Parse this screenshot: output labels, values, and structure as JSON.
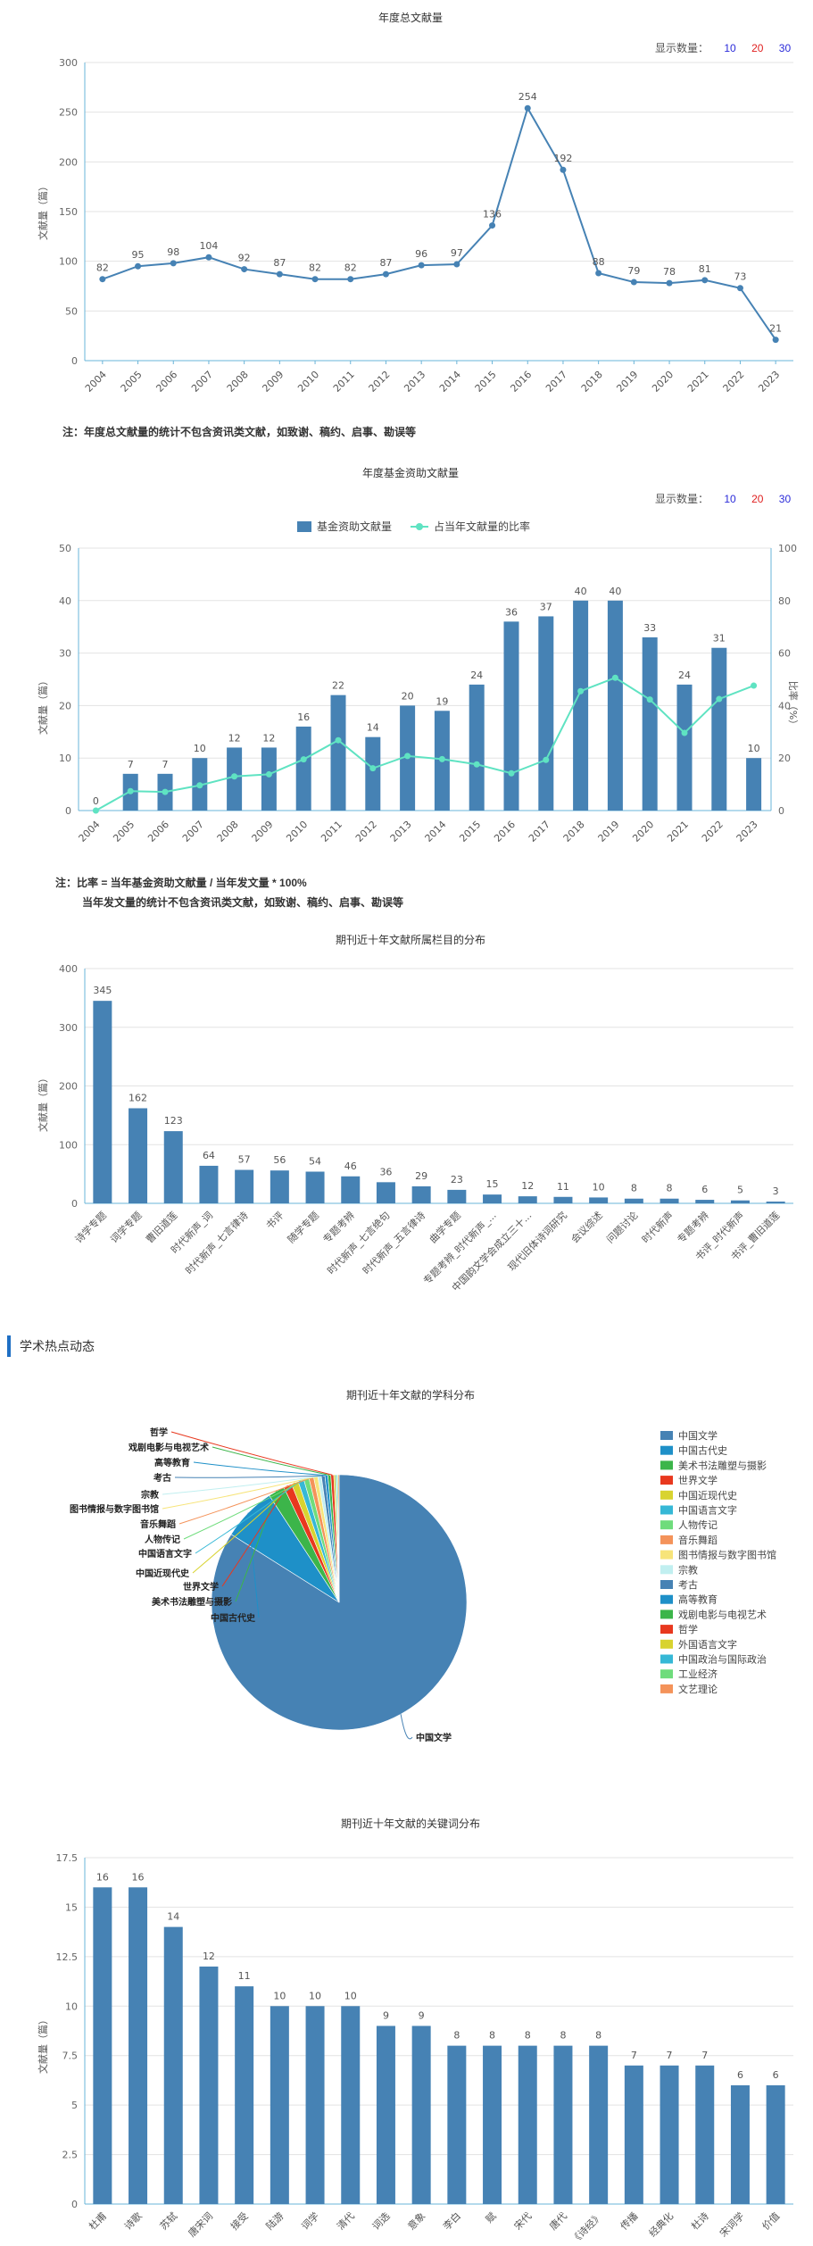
{
  "controls": {
    "label": "显示数量：",
    "opt10": "10",
    "opt20": "20",
    "opt30": "30"
  },
  "chart1": {
    "title": "年度总文献量",
    "ylabel": "文献量（篇）",
    "note": "注：年度总文献量的统计不包含资讯类文献，如致谢、稿约、启事、勘误等"
  },
  "chart2": {
    "title": "年度基金资助文献量",
    "ylabel": "文献量（篇）",
    "ylabel_right": "比率（%）",
    "legend_bar": "基金资助文献量",
    "legend_line": "占当年文献量的比率",
    "note1": "注：比率 = 当年基金资助文献量 / 当年发文量 * 100%",
    "note2": "当年发文量的统计不包含资讯类文献，如致谢、稿约、启事、勘误等"
  },
  "chart3": {
    "title": "期刊近十年文献所属栏目的分布",
    "ylabel": "文献量（篇）"
  },
  "section": {
    "title": "学术热点动态"
  },
  "chart4": {
    "title": "期刊近十年文献的学科分布"
  },
  "chart5": {
    "title": "期刊近十年文献的关键词分布",
    "ylabel": "文献量（篇）"
  },
  "chart_data": [
    {
      "type": "line",
      "title": "年度总文献量",
      "ylabel": "文献量（篇）",
      "x": [
        "2004",
        "2005",
        "2006",
        "2007",
        "2008",
        "2009",
        "2010",
        "2011",
        "2012",
        "2013",
        "2014",
        "2015",
        "2016",
        "2017",
        "2018",
        "2019",
        "2020",
        "2021",
        "2022",
        "2023"
      ],
      "values": [
        82,
        95,
        98,
        104,
        92,
        87,
        82,
        82,
        87,
        96,
        97,
        136,
        254,
        192,
        88,
        79,
        78,
        81,
        73,
        21
      ],
      "ylim": [
        0,
        300
      ],
      "yticks": [
        0,
        50,
        100,
        150,
        200,
        250,
        300
      ],
      "color": "#4682b4"
    },
    {
      "type": "bar",
      "title": "年度基金资助文献量",
      "ylabel": "文献量（篇）",
      "ylabel_right": "比率（%）",
      "x": [
        "2004",
        "2005",
        "2006",
        "2007",
        "2008",
        "2009",
        "2010",
        "2011",
        "2012",
        "2013",
        "2014",
        "2015",
        "2016",
        "2017",
        "2018",
        "2019",
        "2020",
        "2021",
        "2022",
        "2023"
      ],
      "series": [
        {
          "name": "基金资助文献量",
          "type": "bar",
          "color": "#4682b4",
          "values": [
            0,
            7,
            7,
            10,
            12,
            12,
            16,
            22,
            14,
            20,
            19,
            24,
            36,
            37,
            40,
            40,
            33,
            24,
            31,
            10
          ]
        },
        {
          "name": "占当年文献量的比率",
          "type": "line",
          "axis": "right",
          "color": "#5fe3c2",
          "values": [
            0,
            7.4,
            7.1,
            9.6,
            13.0,
            13.8,
            19.5,
            26.8,
            16.1,
            20.8,
            19.6,
            17.6,
            14.2,
            19.3,
            45.5,
            50.6,
            42.3,
            29.6,
            42.5,
            47.6
          ]
        }
      ],
      "ylim": [
        0,
        50
      ],
      "yticks": [
        0,
        10,
        20,
        30,
        40,
        50
      ],
      "ylim_right": [
        0,
        100
      ],
      "yticks_right": [
        0,
        20,
        40,
        60,
        80,
        100
      ]
    },
    {
      "type": "bar",
      "title": "期刊近十年文献所属栏目的分布",
      "ylabel": "文献量（篇）",
      "categories": [
        "诗学专题",
        "词学专题",
        "曹旧道莲",
        "时代新声_词",
        "时代新声_七言律诗",
        "书评",
        "随学专题",
        "专题考辨",
        "时代新声_七言绝句",
        "时代新声_五言律诗",
        "曲学专题",
        "专题考辨_时代新声_...",
        "中国韵文学会成立三十...",
        "现代旧体诗词研究",
        "会议综述",
        "问题讨论",
        "时代新声",
        "专题考辨",
        "书评_时代新声",
        "书评_曹旧道莲"
      ],
      "values": [
        345,
        162,
        123,
        64,
        57,
        56,
        54,
        46,
        36,
        29,
        23,
        15,
        12,
        11,
        10,
        8,
        8,
        6,
        5,
        3
      ],
      "ylim": [
        0,
        400
      ],
      "yticks": [
        0,
        100,
        200,
        300,
        400
      ],
      "color": "#4682b4"
    },
    {
      "type": "pie",
      "title": "期刊近十年文献的学科分布",
      "labels": [
        "中国文学",
        "中国古代史",
        "美术书法雕塑与摄影",
        "世界文学",
        "中国近现代史",
        "中国语言文字",
        "人物传记",
        "音乐舞蹈",
        "图书情报与数字图书馆",
        "宗教",
        "考古",
        "高等教育",
        "戏剧电影与电视艺术",
        "哲学",
        "外国语言文字",
        "中国政治与国际政治",
        "工业经济",
        "文艺理论"
      ],
      "values": [
        1130,
        92,
        28,
        14,
        12,
        10,
        9,
        8,
        7,
        6,
        6,
        5,
        5,
        5,
        3,
        2,
        2,
        2
      ],
      "colors": [
        "#4682b4",
        "#1e90c8",
        "#3cb54a",
        "#e8381e",
        "#d8d330",
        "#36b8d6",
        "#6fdc7c",
        "#f4935a",
        "#f7e47a",
        "#c1eff0",
        "#4682b4",
        "#1e90c8",
        "#3cb54a",
        "#e8381e",
        "#d8d330",
        "#36b8d6",
        "#6fdc7c",
        "#f4935a"
      ],
      "callouts": [
        "中国文学",
        "中国古代史",
        "美术书法雕塑与摄影",
        "世界文学",
        "中国近现代史",
        "中国语言文字",
        "人物传记",
        "音乐舞蹈",
        "图书情报与数字图书馆",
        "宗教",
        "考古",
        "高等教育",
        "戏剧电影与电视艺术",
        "哲学"
      ]
    },
    {
      "type": "bar",
      "title": "期刊近十年文献的关键词分布",
      "ylabel": "文献量（篇）",
      "categories": [
        "杜甫",
        "诗歌",
        "苏轼",
        "唐宋词",
        "接受",
        "陆游",
        "词学",
        "清代",
        "词选",
        "意象",
        "李白",
        "赋",
        "宋代",
        "唐代",
        "《诗经》",
        "传播",
        "经典化",
        "杜诗",
        "宋词学",
        "价值"
      ],
      "values": [
        16,
        16,
        14,
        12,
        11,
        10,
        10,
        10,
        9,
        9,
        8,
        8,
        8,
        8,
        8,
        7,
        7,
        7,
        6,
        6
      ],
      "ylim": [
        0,
        17.5
      ],
      "yticks": [
        0,
        2.5,
        5,
        7.5,
        10,
        12.5,
        15,
        17.5
      ],
      "color": "#4682b4"
    }
  ]
}
